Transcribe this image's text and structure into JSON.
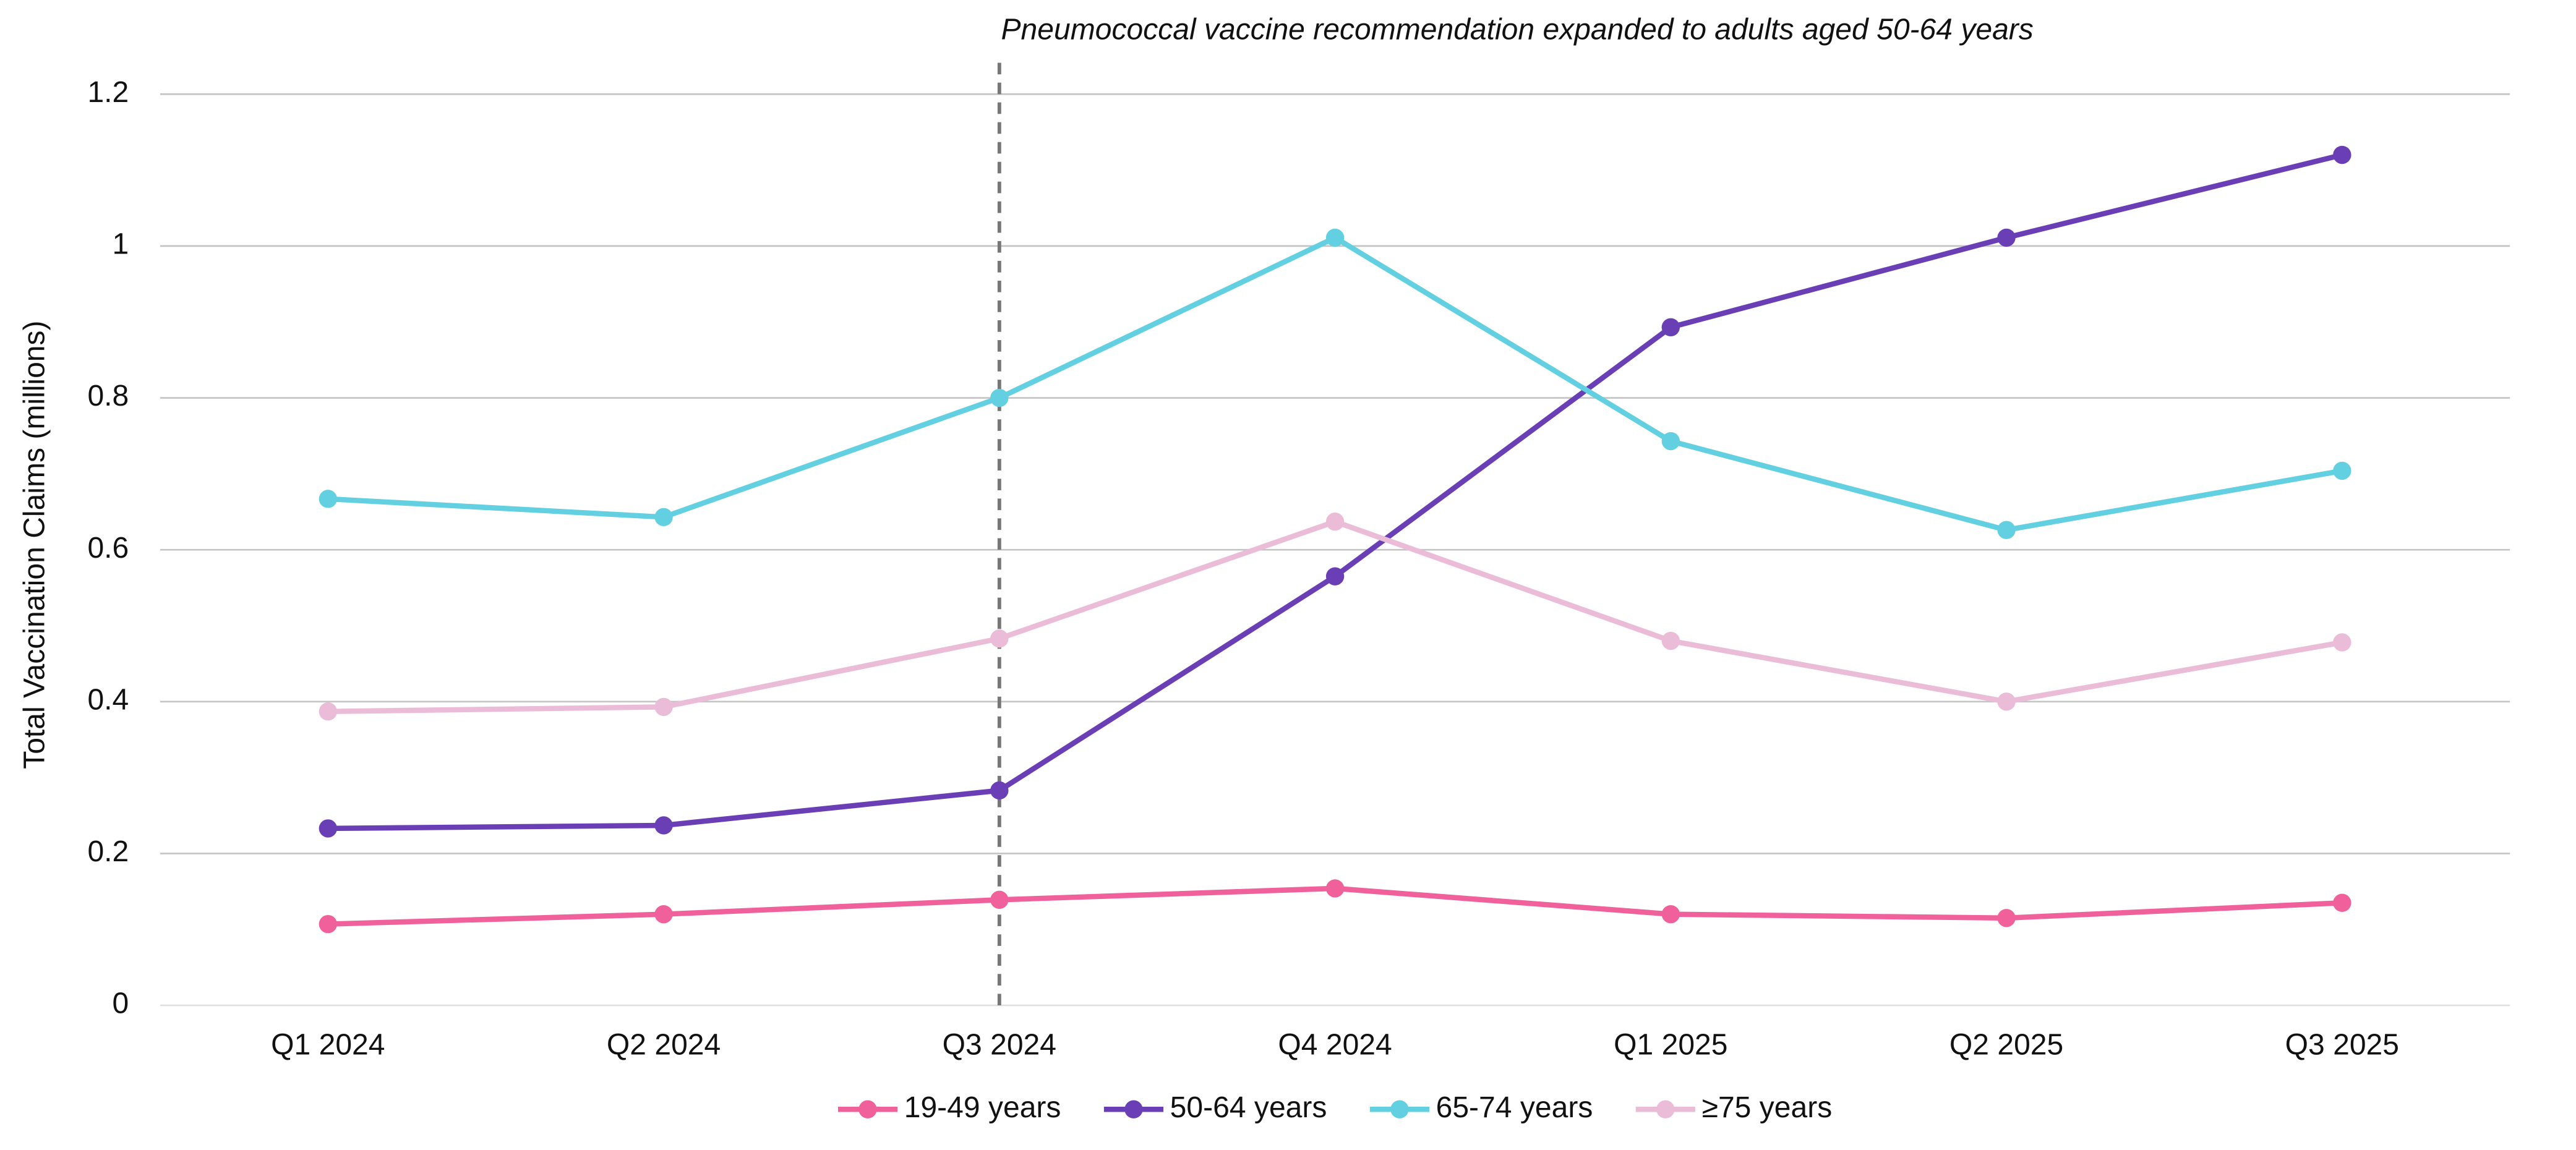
{
  "chart_data": {
    "type": "line",
    "y_label": "Total Vaccination Claims (millions)",
    "categories": [
      "Q1 2024",
      "Q2 2024",
      "Q3 2024",
      "Q4 2024",
      "Q1 2025",
      "Q2 2025",
      "Q3 2025"
    ],
    "series": [
      {
        "name": "19-49 years",
        "color": "#f0609a",
        "values": [
          0.107,
          0.12,
          0.139,
          0.154,
          0.12,
          0.115,
          0.135
        ]
      },
      {
        "name": "50-64 years",
        "color": "#6a3fb5",
        "values": [
          0.233,
          0.237,
          0.283,
          0.565,
          0.893,
          1.011,
          1.12
        ]
      },
      {
        "name": "65-74 years",
        "color": "#62d0e0",
        "values": [
          0.667,
          0.643,
          0.8,
          1.011,
          0.743,
          0.626,
          0.704
        ]
      },
      {
        "name": "≥75 years",
        "color": "#ebbcd8",
        "values": [
          0.387,
          0.393,
          0.483,
          0.637,
          0.48,
          0.4,
          0.478
        ]
      }
    ],
    "ylim": [
      0,
      1.2
    ],
    "yticks": [
      0,
      0.2,
      0.4,
      0.6,
      0.8,
      1,
      1.2
    ],
    "grid": true,
    "legend": "bottom",
    "annotation": {
      "text": "Pneumococcal vaccine recommendation expanded to adults aged 50-64 years",
      "x": "Q3 2024"
    }
  }
}
